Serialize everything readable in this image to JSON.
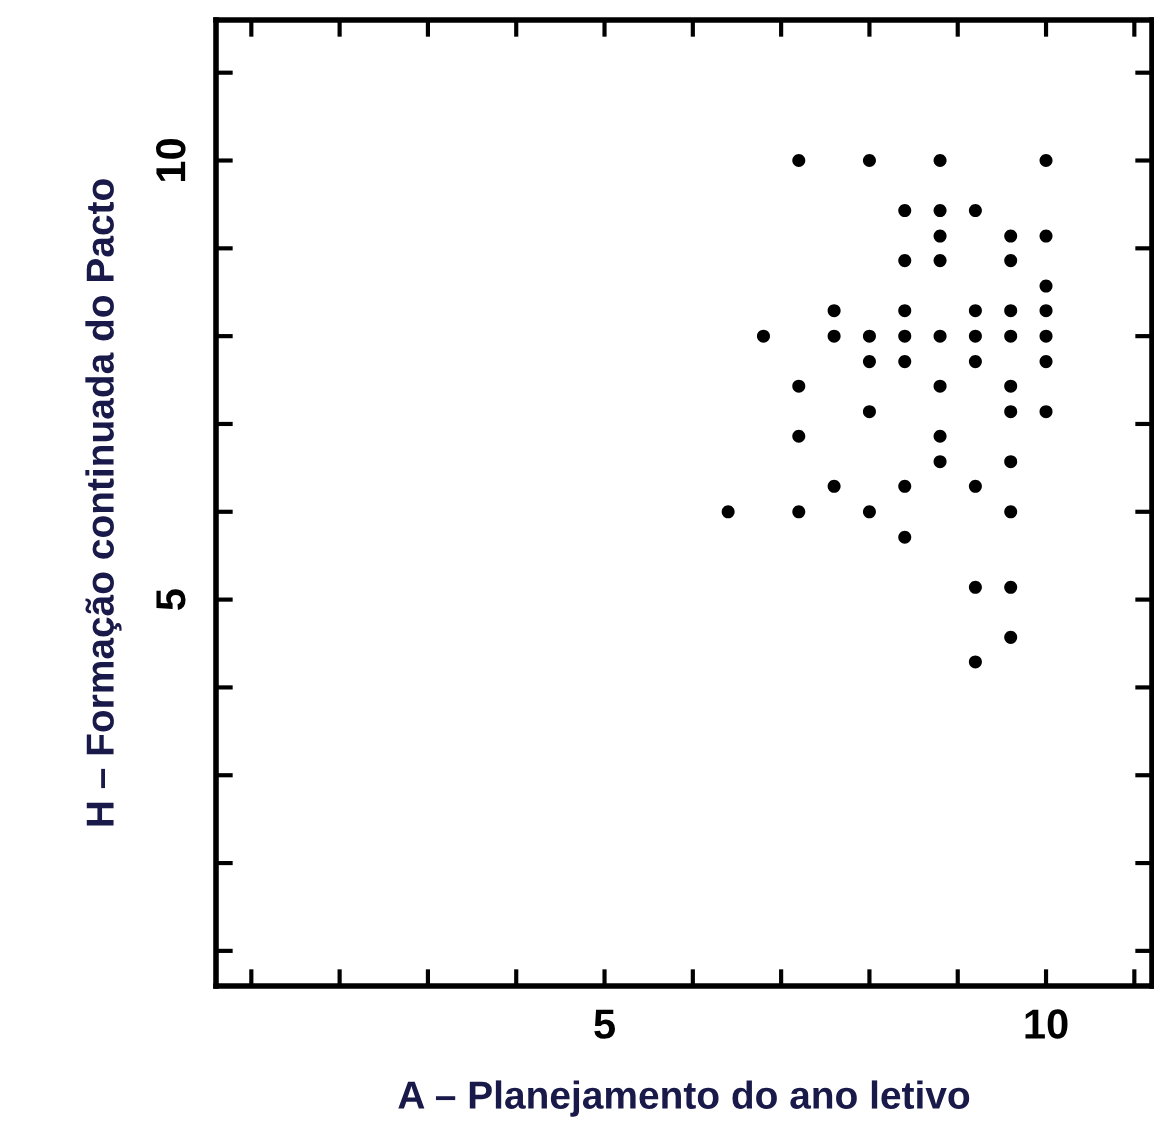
{
  "chart_data": {
    "type": "scatter",
    "xlabel": "A – Planejamento do ano letivo",
    "ylabel": "H – Formação continuada do Pacto",
    "marker": "circle",
    "grid": false,
    "series": [
      {
        "color": "#000000",
        "x": [
          7.2,
          8,
          8.8,
          10,
          8.4,
          8.8,
          9.2,
          8.8,
          9.6,
          10,
          8.4,
          8.8,
          9.6,
          10,
          7.6,
          8.4,
          9.2,
          9.6,
          10,
          6.8,
          7.6,
          8,
          8.4,
          8.8,
          9.2,
          9.6,
          10,
          8,
          8.4,
          9.2,
          10,
          7.2,
          8.8,
          9.6,
          8,
          9.6,
          10,
          7.2,
          8.8,
          8.8,
          9.6,
          7.6,
          8.4,
          9.2,
          6.4,
          7.2,
          8,
          9.6,
          8.4,
          9.2,
          9.6,
          9.6,
          9.2
        ],
        "values": [
          10,
          10,
          10,
          10,
          9.43,
          9.43,
          9.43,
          9.14,
          9.14,
          9.14,
          8.86,
          8.86,
          8.86,
          8.57,
          8.29,
          8.29,
          8.29,
          8.29,
          8.29,
          8,
          8,
          8,
          8,
          8,
          8,
          8,
          8,
          7.71,
          7.71,
          7.71,
          7.71,
          7.43,
          7.43,
          7.43,
          7.14,
          7.14,
          7.14,
          6.86,
          6.86,
          6.57,
          6.57,
          6.29,
          6.29,
          6.29,
          6,
          6,
          6,
          6,
          5.71,
          5.14,
          5.14,
          4.57,
          4.29
        ]
      }
    ],
    "xlim": [
      0.6,
      11.2
    ],
    "ylim": [
      0.6,
      11.6
    ],
    "xticks": [
      {
        "value": 1,
        "label": null
      },
      {
        "value": 2,
        "label": null
      },
      {
        "value": 3,
        "label": null
      },
      {
        "value": 4,
        "label": null
      },
      5,
      {
        "value": 6,
        "label": null
      },
      {
        "value": 7,
        "label": null
      },
      {
        "value": 8,
        "label": null
      },
      {
        "value": 9,
        "label": null
      },
      10,
      {
        "value": 11,
        "label": null
      }
    ],
    "yticks": [
      {
        "value": 1,
        "label": null
      },
      {
        "value": 2,
        "label": null
      },
      {
        "value": 3,
        "label": null
      },
      {
        "value": 4,
        "label": null
      },
      5,
      {
        "value": 6,
        "label": null
      },
      {
        "value": 7,
        "label": null
      },
      {
        "value": 8,
        "label": null
      },
      {
        "value": 9,
        "label": null
      },
      10,
      {
        "value": 11,
        "label": null
      }
    ]
  }
}
